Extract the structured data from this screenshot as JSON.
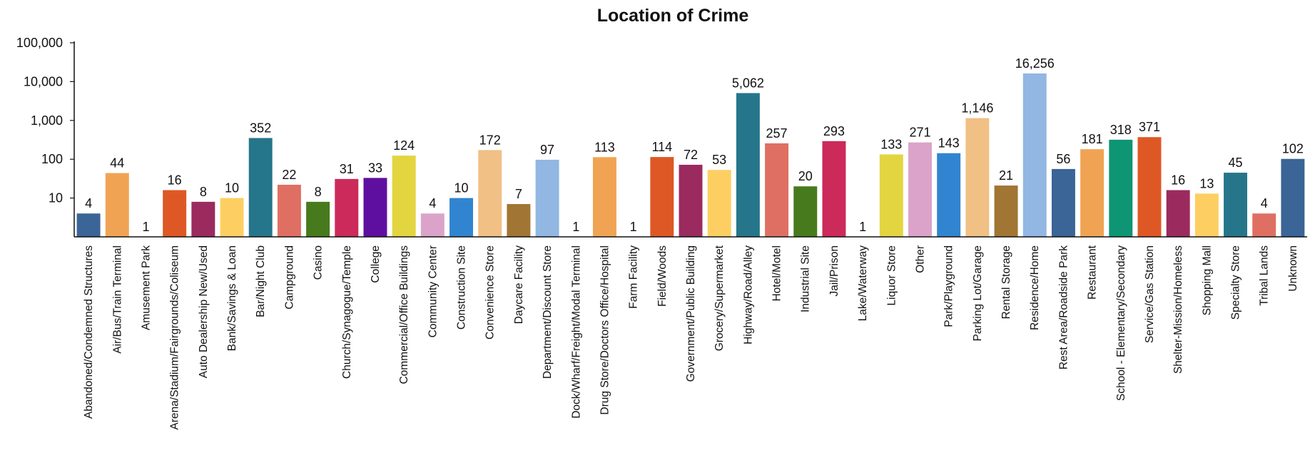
{
  "chart_data": {
    "type": "bar",
    "title": "Location of Crime",
    "y_scale": "log",
    "ylim": [
      1,
      100000
    ],
    "yticks": [
      10,
      100,
      1000,
      10000,
      100000
    ],
    "ytick_labels": [
      "10",
      "100",
      "1,000",
      "10,000",
      "100,000"
    ],
    "grid": false,
    "legend": "none",
    "categories": [
      "Abandoned/Condemned Structures",
      "Air/Bus/Train Terminal",
      "Amusement Park",
      "Arena/Stadium/Fairgrounds/Coliseum",
      "Auto Dealership New/Used",
      "Bank/Savings & Loan",
      "Bar/Night Club",
      "Campground",
      "Casino",
      "Church/Synagogue/Temple",
      "College",
      "Commercial/Office Buildings",
      "Community Center",
      "Construction Site",
      "Convenience Store",
      "Daycare Facility",
      "Department/Discount Store",
      "Dock/Wharf/Freight/Modal Terminal",
      "Drug Store/Doctors Office/Hospital",
      "Farm Facility",
      "Field/Woods",
      "Government/Public Building",
      "Grocery/Supermarket",
      "Highway/Road/Alley",
      "Hotel/Motel",
      "Industrial Site",
      "Jail/Prison",
      "Lake/Waterway",
      "Liquor Store",
      "Other",
      "Park/Playground",
      "Parking Lot/Garage",
      "Rental Storage",
      "Residence/Home",
      "Rest Area/Roadside Park",
      "Restaurant",
      "School - Elementary/Secondary",
      "Service/Gas Station",
      "Shelter-Mission/Homeless",
      "Shopping Mall",
      "Specialty Store",
      "Tribal Lands",
      "Unknown"
    ],
    "values": [
      4,
      44,
      1,
      16,
      8,
      10,
      352,
      22,
      8,
      31,
      33,
      124,
      4,
      10,
      172,
      7,
      97,
      1,
      113,
      1,
      114,
      72,
      53,
      5062,
      257,
      20,
      293,
      1,
      133,
      271,
      143,
      1146,
      21,
      16256,
      56,
      181,
      318,
      371,
      16,
      13,
      45,
      4,
      102
    ],
    "value_labels": [
      "4",
      "44",
      "1",
      "16",
      "8",
      "10",
      "352",
      "22",
      "8",
      "31",
      "33",
      "124",
      "4",
      "10",
      "172",
      "7",
      "97",
      "1",
      "113",
      "1",
      "114",
      "72",
      "53",
      "5,062",
      "257",
      "20",
      "293",
      "1",
      "133",
      "271",
      "143",
      "1,146",
      "21",
      "16,256",
      "56",
      "181",
      "318",
      "371",
      "16",
      "13",
      "45",
      "4",
      "102"
    ],
    "colors": [
      "#3b6497",
      "#f0a453",
      "#8b0000",
      "#de5825",
      "#9b2a5f",
      "#fdcf62",
      "#26768b",
      "#df6f63",
      "#477a1d",
      "#cc2a5a",
      "#5f0fa0",
      "#e3d53f",
      "#dba3c9",
      "#3185d0",
      "#f0c085",
      "#a17533",
      "#91b7e2",
      "#ff16ff",
      "#f0a453",
      "#0b17ff",
      "#de5825",
      "#9b2a5f",
      "#fdcf62",
      "#26768b",
      "#df6f63",
      "#477a1d",
      "#cc2a5a",
      "#4038a7",
      "#e3d53f",
      "#dba3c9",
      "#3185d0",
      "#f0c085",
      "#a17533",
      "#91b7e2",
      "#3b6497",
      "#f0a453",
      "#0e9573",
      "#de5825",
      "#9b2a5f",
      "#fdcf62",
      "#26768b",
      "#df6f63",
      "#3b6497"
    ]
  }
}
